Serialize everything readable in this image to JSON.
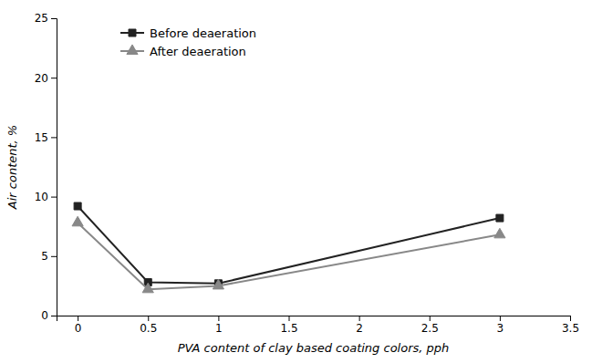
{
  "chart_data": {
    "type": "line",
    "x": [
      0,
      0.5,
      1,
      3
    ],
    "series": [
      {
        "name": "Before deaeration",
        "color": "#222222",
        "marker": "square",
        "values": [
          9.2,
          2.8,
          2.7,
          8.2
        ]
      },
      {
        "name": "After deaeration",
        "color": "#888888",
        "marker": "triangle",
        "values": [
          7.8,
          2.2,
          2.5,
          6.8
        ]
      }
    ],
    "xlabel": "PVA content of clay based coating colors, pph",
    "ylabel": "Air content, %",
    "xlim": [
      -0.15,
      3.5
    ],
    "ylim": [
      0,
      25
    ],
    "xticks": [
      0,
      0.5,
      1,
      1.5,
      2,
      2.5,
      3,
      3.5
    ],
    "yticks": [
      0,
      5,
      10,
      15,
      20,
      25
    ],
    "grid": false,
    "legend": "upper left"
  }
}
